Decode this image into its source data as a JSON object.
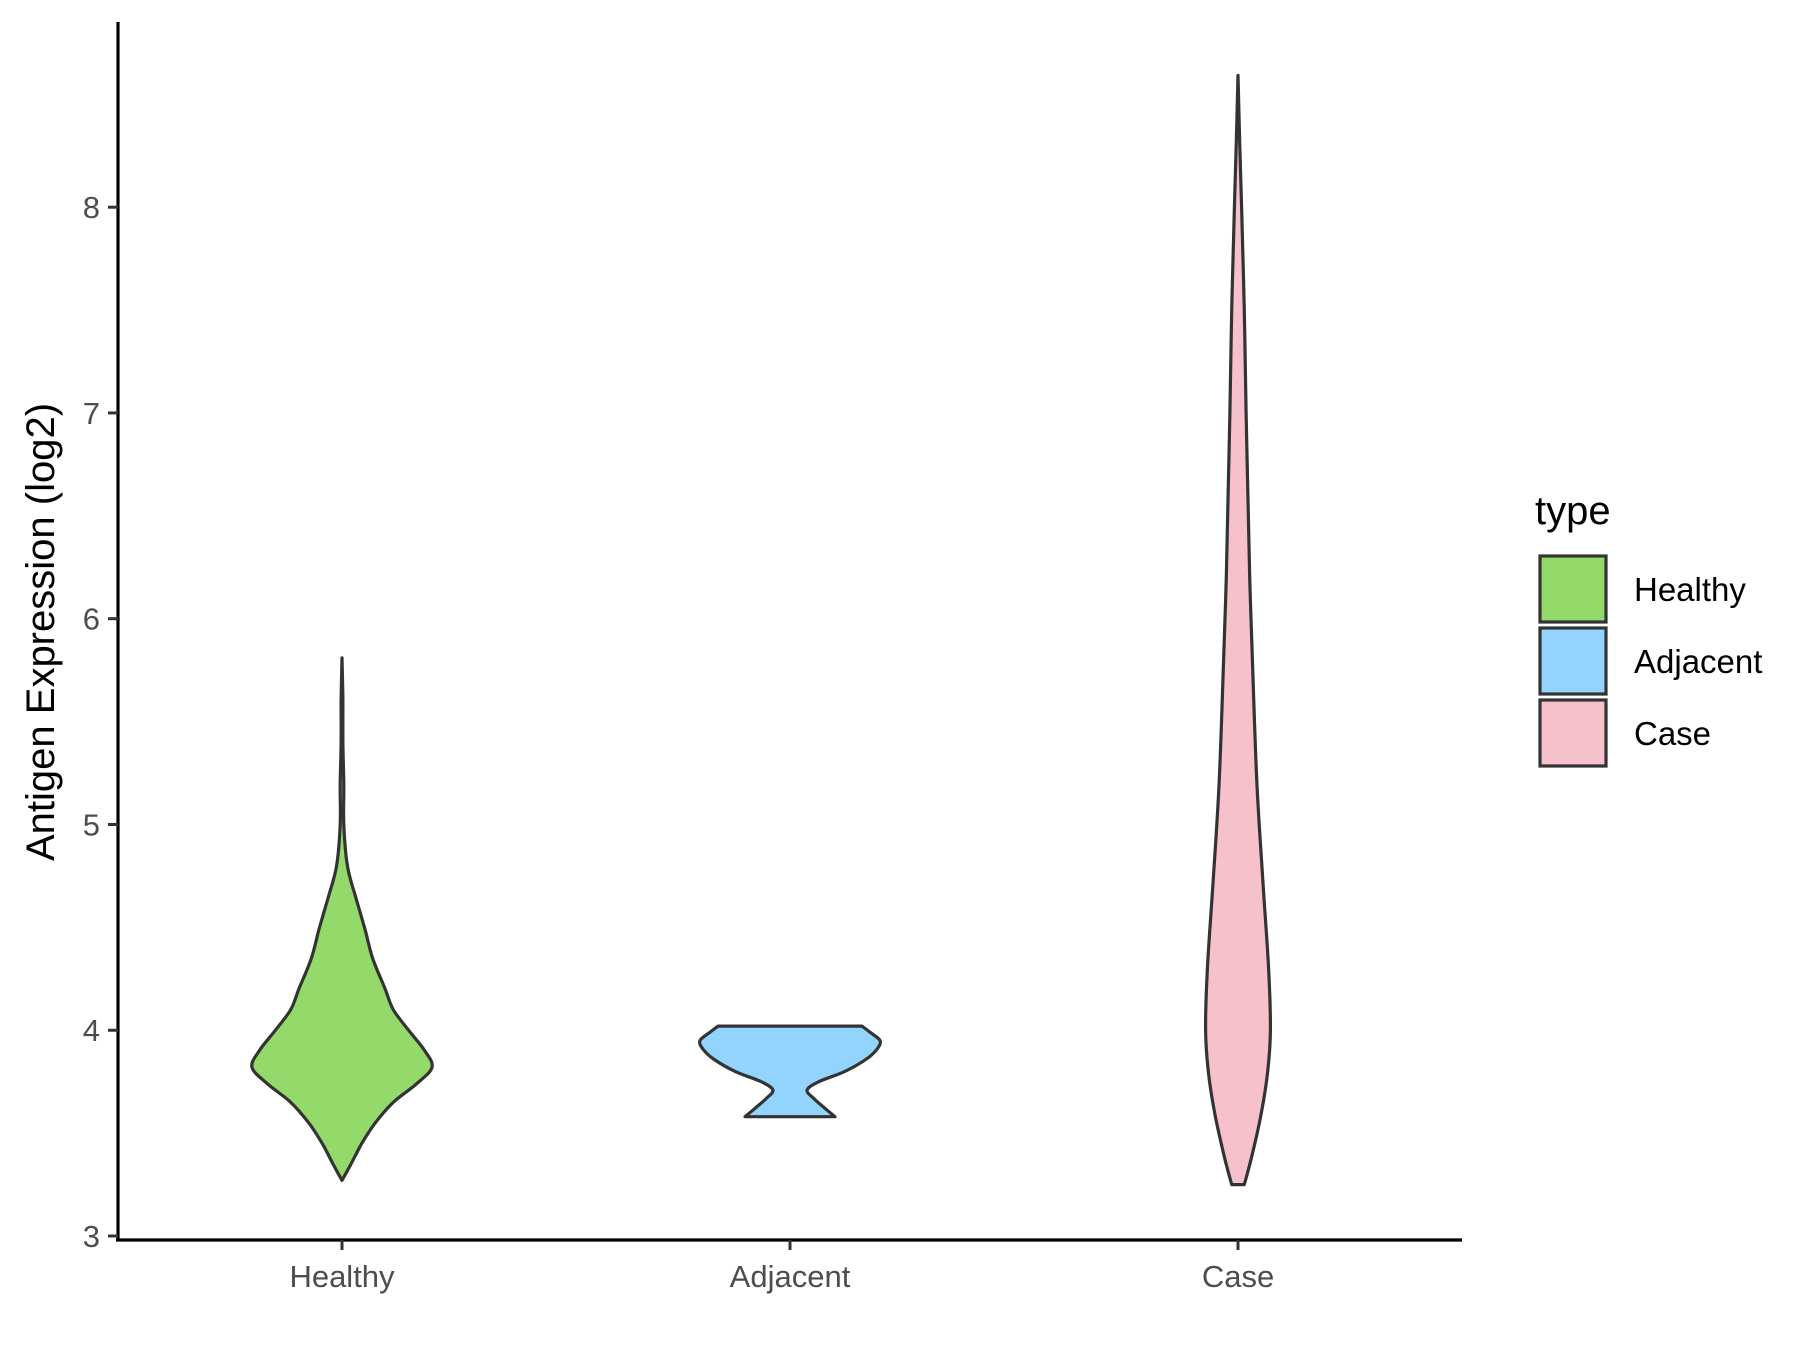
{
  "chart_data": {
    "type": "violin",
    "xlabel": "",
    "ylabel": "Antigen Expression (log2)",
    "ylim": [
      3,
      8.9
    ],
    "yticks": [
      "3",
      "4",
      "5",
      "6",
      "7",
      "8"
    ],
    "categories": [
      "Healthy",
      "Adjacent",
      "Case"
    ],
    "grid": false,
    "legend": {
      "title": "type",
      "position": "right",
      "items": [
        {
          "label": "Healthy",
          "color": "#93DA6B"
        },
        {
          "label": "Adjacent",
          "color": "#93D4FF"
        },
        {
          "label": "Case",
          "color": "#F7C1CB"
        }
      ]
    },
    "series": [
      {
        "category": "Healthy",
        "color": "#93DA6B",
        "min": 3.27,
        "max": 5.81,
        "density": [
          [
            3.27,
            0.0
          ],
          [
            3.35,
            0.1
          ],
          [
            3.45,
            0.22
          ],
          [
            3.55,
            0.37
          ],
          [
            3.65,
            0.57
          ],
          [
            3.74,
            0.83
          ],
          [
            3.82,
            1.0
          ],
          [
            3.9,
            0.92
          ],
          [
            4.0,
            0.74
          ],
          [
            4.1,
            0.57
          ],
          [
            4.2,
            0.48
          ],
          [
            4.35,
            0.34
          ],
          [
            4.5,
            0.25
          ],
          [
            4.65,
            0.15
          ],
          [
            4.8,
            0.06
          ],
          [
            5.0,
            0.02
          ],
          [
            5.2,
            0.02
          ],
          [
            5.4,
            0.01
          ],
          [
            5.6,
            0.01
          ],
          [
            5.81,
            0.0
          ]
        ]
      },
      {
        "category": "Adjacent",
        "color": "#93D4FF",
        "min": 3.58,
        "max": 4.02,
        "density": [
          [
            3.58,
            0.5
          ],
          [
            3.62,
            0.39
          ],
          [
            3.67,
            0.26
          ],
          [
            3.71,
            0.19
          ],
          [
            3.75,
            0.32
          ],
          [
            3.8,
            0.61
          ],
          [
            3.86,
            0.85
          ],
          [
            3.91,
            0.97
          ],
          [
            3.95,
            1.0
          ],
          [
            3.99,
            0.89
          ],
          [
            4.02,
            0.8
          ]
        ]
      },
      {
        "category": "Case",
        "color": "#F7C1CB",
        "min": 3.25,
        "max": 8.64,
        "density": [
          [
            3.25,
            0.07
          ],
          [
            3.4,
            0.16
          ],
          [
            3.6,
            0.26
          ],
          [
            3.8,
            0.33
          ],
          [
            4.0,
            0.36
          ],
          [
            4.3,
            0.34
          ],
          [
            4.7,
            0.28
          ],
          [
            5.2,
            0.21
          ],
          [
            5.8,
            0.16
          ],
          [
            6.2,
            0.13
          ],
          [
            6.6,
            0.11
          ],
          [
            7.0,
            0.09
          ],
          [
            7.5,
            0.07
          ],
          [
            8.0,
            0.04
          ],
          [
            8.3,
            0.02
          ],
          [
            8.64,
            0.0
          ]
        ]
      }
    ]
  }
}
